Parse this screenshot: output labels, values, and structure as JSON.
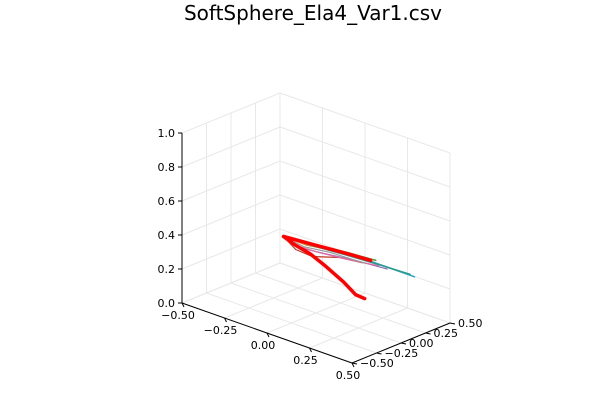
{
  "chart_data": {
    "type": "line",
    "title": "SoftSphere_Ela4_Var1.csv",
    "xlabel": "",
    "ylabel": "",
    "zlabel": "",
    "xlim": [
      -0.5,
      0.5
    ],
    "ylim": [
      -0.5,
      0.5
    ],
    "zlim": [
      0.0,
      1.0
    ],
    "x_ticks": [
      "−0.50",
      "−0.25",
      "0.00",
      "0.25",
      "0.50"
    ],
    "y_ticks": [
      "−0.50",
      "−0.25",
      "0.00",
      "0.25",
      "0.50"
    ],
    "z_ticks": [
      "0.0",
      "0.2",
      "0.4",
      "0.6",
      "0.8",
      "1.0"
    ],
    "x_tick_values": [
      -0.5,
      -0.25,
      0.0,
      0.25,
      0.5
    ],
    "y_tick_values": [
      -0.5,
      -0.25,
      0.0,
      0.25,
      0.5
    ],
    "z_tick_values": [
      0.0,
      0.2,
      0.4,
      0.6,
      0.8,
      1.0
    ],
    "grid": true,
    "legend": "none",
    "series": [
      {
        "color": "#4e9f3d",
        "width": 1.5,
        "points": [
          [
            -0.26,
            0.12,
            0.33
          ],
          [
            -0.2,
            0.18,
            0.31
          ],
          [
            -0.1,
            0.24,
            0.3
          ],
          [
            0.02,
            0.3,
            0.29
          ],
          [
            0.15,
            0.35,
            0.28
          ]
        ]
      },
      {
        "color": "#2aa6c9",
        "width": 1.5,
        "points": [
          [
            -0.26,
            0.12,
            0.33
          ],
          [
            -0.18,
            0.2,
            0.3
          ],
          [
            -0.05,
            0.27,
            0.28
          ],
          [
            0.12,
            0.36,
            0.26
          ],
          [
            0.32,
            0.45,
            0.22
          ]
        ]
      },
      {
        "color": "#c0392b",
        "width": 1.2,
        "points": [
          [
            -0.26,
            0.12,
            0.33
          ],
          [
            -0.2,
            0.14,
            0.27
          ],
          [
            -0.12,
            0.17,
            0.25
          ],
          [
            0.0,
            0.24,
            0.27
          ],
          [
            0.1,
            0.3,
            0.26
          ]
        ]
      },
      {
        "color": "#8e6bb8",
        "width": 1.2,
        "points": [
          [
            -0.26,
            0.12,
            0.33
          ],
          [
            -0.19,
            0.16,
            0.28
          ],
          [
            -0.08,
            0.22,
            0.27
          ],
          [
            0.06,
            0.3,
            0.26
          ],
          [
            0.2,
            0.38,
            0.24
          ]
        ]
      },
      {
        "color": "#e08a2e",
        "width": 1.2,
        "points": [
          [
            -0.26,
            0.12,
            0.33
          ],
          [
            -0.16,
            0.18,
            0.3
          ],
          [
            -0.04,
            0.26,
            0.29
          ],
          [
            0.08,
            0.32,
            0.27
          ]
        ]
      },
      {
        "color": "#e26ba8",
        "width": 1.2,
        "points": [
          [
            -0.26,
            0.12,
            0.33
          ],
          [
            -0.2,
            0.15,
            0.29
          ],
          [
            -0.1,
            0.21,
            0.27
          ],
          [
            0.04,
            0.28,
            0.26
          ],
          [
            0.16,
            0.36,
            0.25
          ]
        ]
      },
      {
        "color": "#9a9a9a",
        "width": 1.2,
        "points": [
          [
            -0.26,
            0.12,
            0.33
          ],
          [
            -0.17,
            0.17,
            0.29
          ],
          [
            -0.06,
            0.24,
            0.28
          ],
          [
            0.1,
            0.33,
            0.25
          ]
        ]
      },
      {
        "color": "#2b9a8c",
        "width": 1.5,
        "points": [
          [
            -0.26,
            0.12,
            0.33
          ],
          [
            -0.15,
            0.2,
            0.3
          ],
          [
            0.0,
            0.28,
            0.28
          ],
          [
            0.18,
            0.38,
            0.25
          ],
          [
            0.3,
            0.44,
            0.23
          ]
        ]
      },
      {
        "color": "#ff0000",
        "width": 3.5,
        "points": [
          [
            -0.26,
            0.12,
            0.33
          ],
          [
            -0.1,
            0.18,
            0.32
          ],
          [
            0.06,
            0.24,
            0.31
          ],
          [
            0.16,
            0.28,
            0.3
          ]
        ]
      },
      {
        "color": "#ff0000",
        "width": 3.5,
        "points": [
          [
            -0.26,
            0.12,
            0.33
          ],
          [
            -0.2,
            0.13,
            0.3
          ],
          [
            -0.12,
            0.15,
            0.27
          ],
          [
            -0.04,
            0.17,
            0.22
          ],
          [
            0.06,
            0.18,
            0.16
          ],
          [
            0.14,
            0.16,
            0.12
          ],
          [
            0.2,
            0.15,
            0.12
          ]
        ]
      }
    ]
  }
}
